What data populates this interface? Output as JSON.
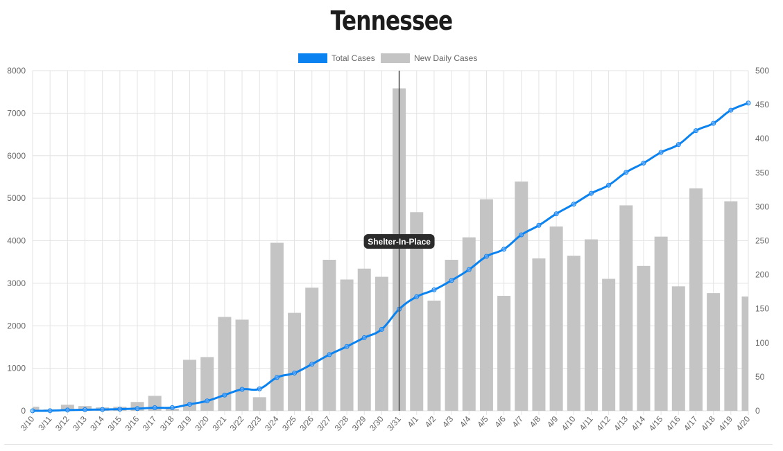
{
  "page": {
    "title": "Tennessee"
  },
  "legend": {
    "total_label": "Total Cases",
    "daily_label": "New Daily Cases"
  },
  "colors": {
    "total": "#0a82f0",
    "daily": "#c4c4c4",
    "grid": "#e3e3e3",
    "axis_text": "#666666",
    "annotation_bg": "#2b2b2b",
    "annotation_text": "#ffffff"
  },
  "annotation": {
    "label": "Shelter-In-Place",
    "x": "3/31"
  },
  "chart_data": {
    "type": "bar",
    "title": "Tennessee",
    "categories": [
      "3/10",
      "3/11",
      "3/12",
      "3/13",
      "3/14",
      "3/15",
      "3/16",
      "3/17",
      "3/18",
      "3/19",
      "3/20",
      "3/21",
      "3/22",
      "3/23",
      "3/24",
      "3/25",
      "3/26",
      "3/27",
      "3/28",
      "3/29",
      "3/30",
      "3/31",
      "4/1",
      "4/2",
      "4/3",
      "4/4",
      "4/5",
      "4/6",
      "4/7",
      "4/8",
      "4/9",
      "4/10",
      "4/11",
      "4/12",
      "4/13",
      "4/14",
      "4/15",
      "4/16",
      "4/17",
      "4/18",
      "4/19",
      "4/20"
    ],
    "series": [
      {
        "name": "Total Cases",
        "type": "line",
        "axis": "left",
        "values": [
          1,
          3,
          18,
          26,
          30,
          39,
          52,
          73,
          75,
          154,
          233,
          371,
          505,
          517,
          784,
          889,
          1097,
          1321,
          1512,
          1720,
          1917,
          2391,
          2683,
          2845,
          3067,
          3321,
          3633,
          3802,
          4138,
          4362,
          4634,
          4862,
          5114,
          5308,
          5610,
          5827,
          6079,
          6262,
          6589,
          6762,
          7070,
          7238
        ]
      },
      {
        "name": "New Daily Cases",
        "type": "bar",
        "axis": "right",
        "values": [
          6,
          2,
          9,
          7,
          5,
          6,
          13,
          22,
          3,
          75,
          79,
          138,
          134,
          20,
          247,
          144,
          181,
          222,
          193,
          209,
          197,
          474,
          292,
          162,
          222,
          255,
          311,
          169,
          337,
          224,
          271,
          228,
          252,
          194,
          302,
          213,
          256,
          183,
          327,
          173,
          308,
          168
        ]
      }
    ],
    "yaxis_left": {
      "min": 0,
      "max": 8000,
      "ticks": [
        0,
        1000,
        2000,
        3000,
        4000,
        5000,
        6000,
        7000,
        8000
      ]
    },
    "yaxis_right": {
      "min": 0,
      "max": 500,
      "ticks": [
        0,
        50,
        100,
        150,
        200,
        250,
        300,
        350,
        400,
        450,
        500
      ]
    },
    "grid": true,
    "legend_position": "top"
  }
}
